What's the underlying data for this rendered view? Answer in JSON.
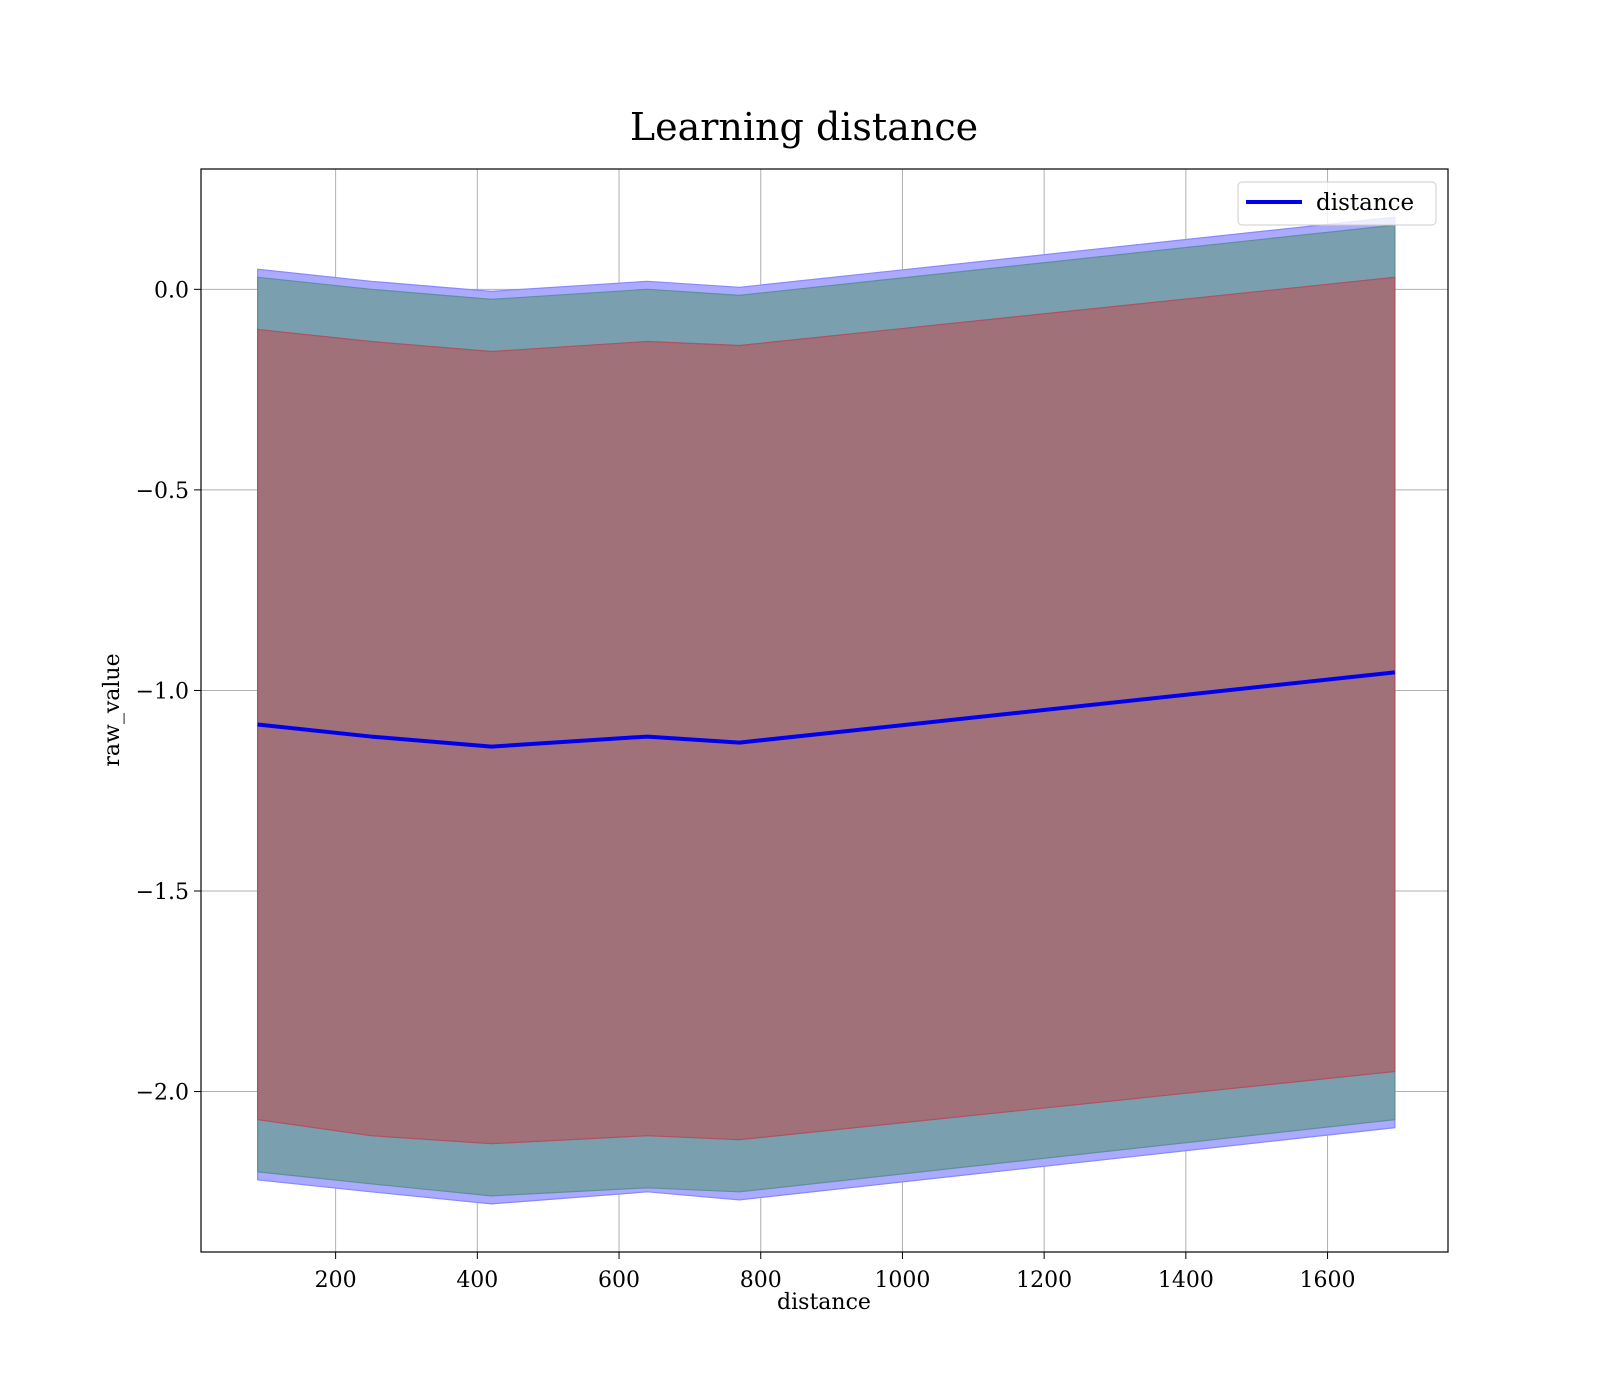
{
  "chart_data": {
    "type": "line",
    "title": "Learning distance",
    "xlabel": "distance",
    "ylabel": "raw_value",
    "xlim": [
      10,
      1770
    ],
    "ylim": [
      -2.4,
      0.3
    ],
    "xticks": [
      200,
      400,
      600,
      800,
      1000,
      1200,
      1400,
      1600
    ],
    "yticks": [
      0.0,
      -0.5,
      -1.0,
      -1.5,
      -2.0
    ],
    "ytick_labels": [
      "0.0",
      "−0.5",
      "−1.0",
      "−1.5",
      "−2.0"
    ],
    "grid": true,
    "legend_position": "top-right",
    "x": [
      90,
      250,
      420,
      640,
      770,
      1695
    ],
    "series": [
      {
        "name": "distance",
        "color": "#0000ee",
        "values": [
          -1.085,
          -1.115,
          -1.14,
          -1.115,
          -1.13,
          -0.955
        ]
      }
    ],
    "bands": [
      {
        "color": "#aaaaff",
        "stroke": "#8888ff",
        "upper": [
          0.05,
          0.02,
          -0.005,
          0.02,
          0.005,
          0.18
        ],
        "lower": [
          -2.22,
          -2.25,
          -2.28,
          -2.25,
          -2.27,
          -2.09
        ]
      },
      {
        "color": "#7aa0af",
        "stroke": "#5f8f99",
        "upper": [
          0.03,
          0.0,
          -0.025,
          0.0,
          -0.015,
          0.16
        ],
        "lower": [
          -2.2,
          -2.23,
          -2.26,
          -2.24,
          -2.25,
          -2.07
        ]
      },
      {
        "color": "#a07179",
        "stroke": "#b05060",
        "upper": [
          -0.1,
          -0.13,
          -0.155,
          -0.13,
          -0.14,
          0.03
        ],
        "lower": [
          -2.07,
          -2.11,
          -2.13,
          -2.11,
          -2.12,
          -1.95
        ]
      }
    ]
  }
}
